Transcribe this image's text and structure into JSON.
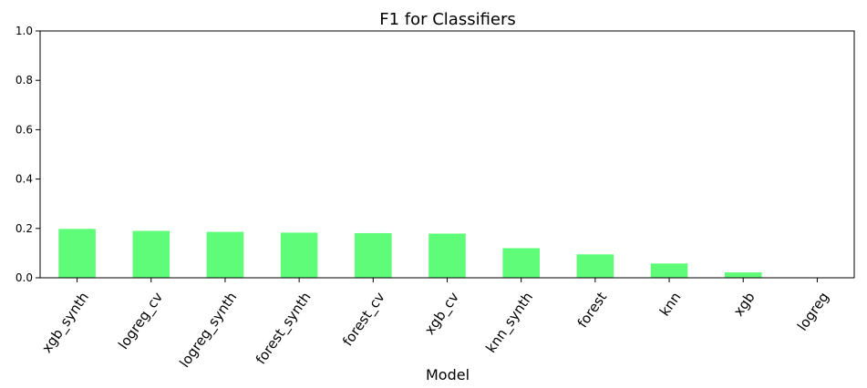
{
  "chart_data": {
    "type": "bar",
    "title": "F1 for Classifiers",
    "xlabel": "Model",
    "ylabel": "",
    "ylim": [
      0,
      1.0
    ],
    "yticks": [
      0.0,
      0.2,
      0.4,
      0.6,
      0.8,
      1.0
    ],
    "ytick_labels": [
      "0.0",
      "0.2",
      "0.4",
      "0.6",
      "0.8",
      "1.0"
    ],
    "categories": [
      "xgb_synth",
      "logreg_cv",
      "logreg_synth",
      "forest_synth",
      "forest_cv",
      "xgb_cv",
      "knn_synth",
      "forest",
      "knn",
      "xgb",
      "logreg"
    ],
    "values": [
      0.198,
      0.19,
      0.186,
      0.183,
      0.181,
      0.179,
      0.12,
      0.095,
      0.058,
      0.022,
      0.0
    ],
    "bar_color": "#5efc78",
    "grid": false,
    "legend": "none"
  }
}
